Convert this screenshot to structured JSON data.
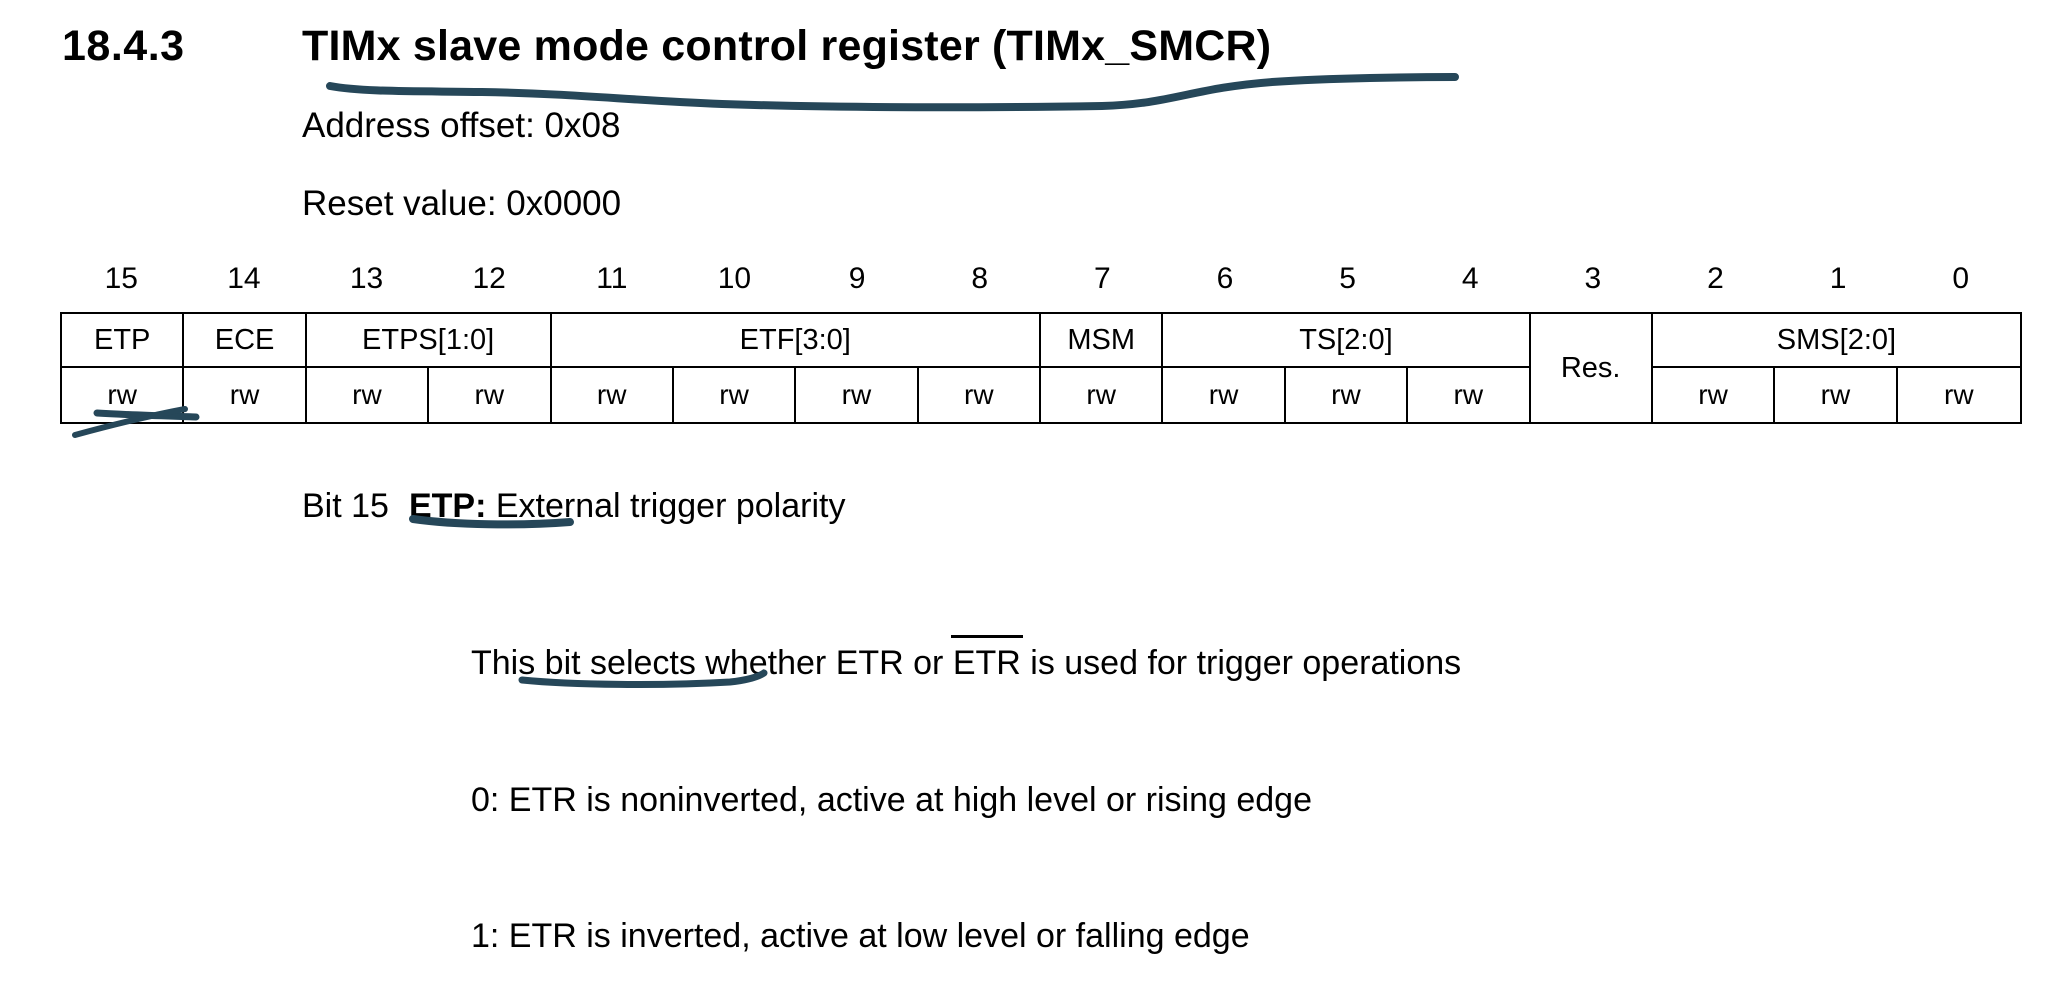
{
  "page": {
    "section_number": "18.4.3",
    "title": "TIMx slave mode control register (TIMx_SMCR)",
    "address_offset": "Address offset: 0x08",
    "reset_value": "Reset value: 0x0000"
  },
  "register_table": {
    "bit_numbers": [
      "15",
      "14",
      "13",
      "12",
      "11",
      "10",
      "9",
      "8",
      "7",
      "6",
      "5",
      "4",
      "3",
      "2",
      "1",
      "0"
    ],
    "fields": [
      {
        "name": "ETP",
        "span": 1,
        "access": "rw"
      },
      {
        "name": "ECE",
        "span": 1,
        "access": "rw"
      },
      {
        "name": "ETPS[1:0]",
        "span": 2,
        "access": "rw"
      },
      {
        "name": "ETF[3:0]",
        "span": 4,
        "access": "rw"
      },
      {
        "name": "MSM",
        "span": 1,
        "access": "rw"
      },
      {
        "name": "TS[2:0]",
        "span": 3,
        "access": "rw"
      },
      {
        "name": "Res.",
        "span": 1,
        "access": null,
        "reserved": true
      },
      {
        "name": "SMS[2:0]",
        "span": 3,
        "access": "rw"
      }
    ]
  },
  "description": {
    "bit_label": "Bit 15",
    "field_name": "ETP:",
    "field_title": " External trigger polarity",
    "line1_pre": "This bit selects whether ETR or ",
    "line1_overlined": "ETR",
    "line1_post": " is used for trigger operations",
    "option0": "0: ETR is noninverted, active at high level or rising edge",
    "option1": "1: ETR is inverted, active at low level or falling edge"
  },
  "annotations": {
    "pen_color": "#264759",
    "marks": [
      "title-underline",
      "etp-rw-double-underline",
      "etp-label-underline",
      "etr-inverted-underline"
    ]
  }
}
